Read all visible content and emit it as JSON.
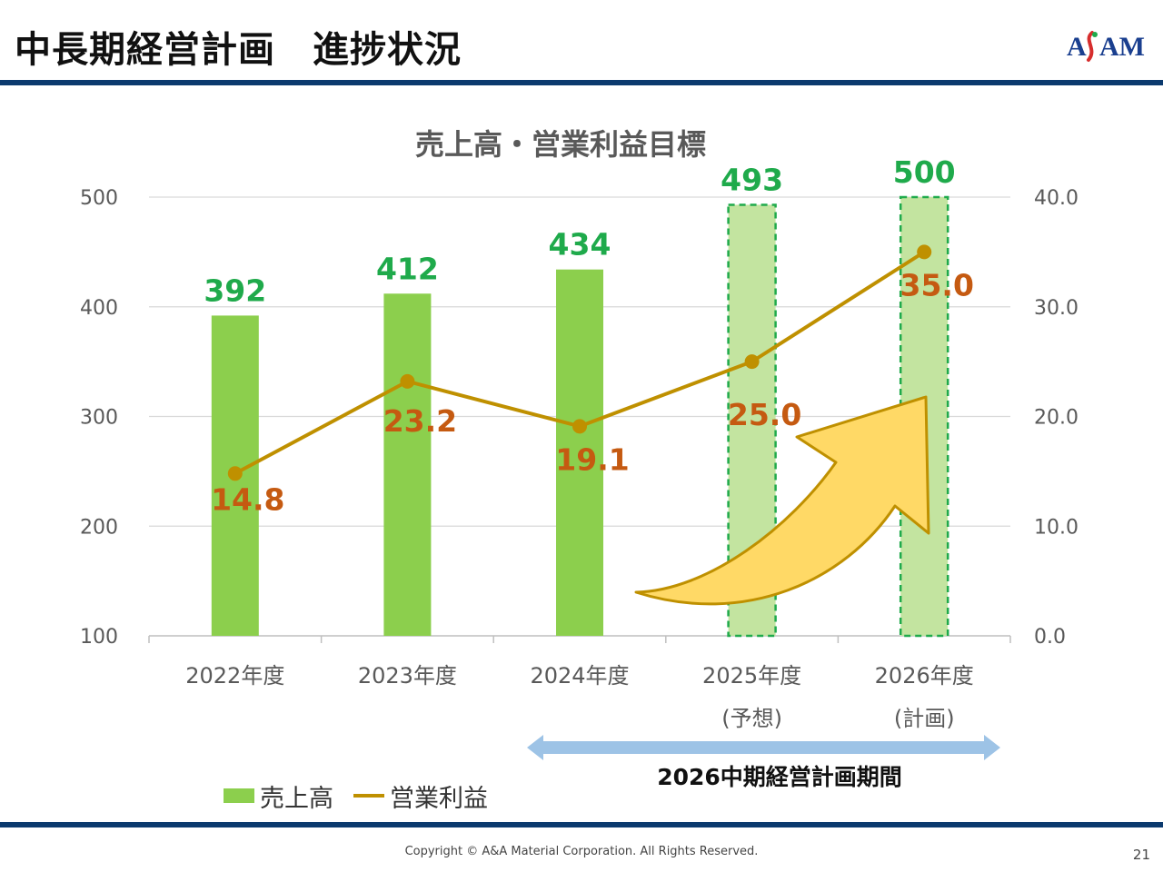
{
  "page": {
    "title": "中長期経営計画　進捗状況",
    "copyright": "Copyright © A&A Material Corporation. All Rights Reserved.",
    "page_number": "21",
    "logo_text": "A&AM"
  },
  "colors": {
    "bar_actual": "#8ccf4d",
    "bar_plan": "#c3e4a0",
    "bar_plan_border": "#1faa4b",
    "bar_label": "#1faa4b",
    "line": "#bf9000",
    "line_label": "#c55a11",
    "arrow_fill": "#ffd966",
    "period_arrow": "#9dc3e6",
    "header_rule": "#0b3a6e"
  },
  "chart_data": {
    "type": "bar",
    "title": "売上高・営業利益目標",
    "categories": [
      "2022年度",
      "2023年度",
      "2024年度",
      "2025年度",
      "2026年度"
    ],
    "category_sublabels": [
      "",
      "",
      "",
      "(予想)",
      "(計画)"
    ],
    "series": [
      {
        "name": "売上高",
        "type": "bar",
        "axis": "left",
        "values": [
          392,
          412,
          434,
          493,
          500
        ],
        "labels": [
          "392",
          "412",
          "434",
          "493",
          "500"
        ]
      },
      {
        "name": "営業利益",
        "type": "line",
        "axis": "right",
        "values": [
          14.8,
          23.2,
          19.1,
          25.0,
          35.0
        ],
        "labels": [
          "14.8",
          "23.2",
          "19.1",
          "25.0",
          "35.0"
        ]
      }
    ],
    "y_left": {
      "min": 100,
      "max": 500,
      "ticks": [
        "100",
        "200",
        "300",
        "400",
        "500"
      ]
    },
    "y_right": {
      "min": 0,
      "max": 40,
      "ticks": [
        "0.0",
        "10.0",
        "20.0",
        "30.0",
        "40.0"
      ]
    },
    "grid": true,
    "legend_position": "bottom-left",
    "plan_period_label": "2026中期経営計画期間"
  }
}
